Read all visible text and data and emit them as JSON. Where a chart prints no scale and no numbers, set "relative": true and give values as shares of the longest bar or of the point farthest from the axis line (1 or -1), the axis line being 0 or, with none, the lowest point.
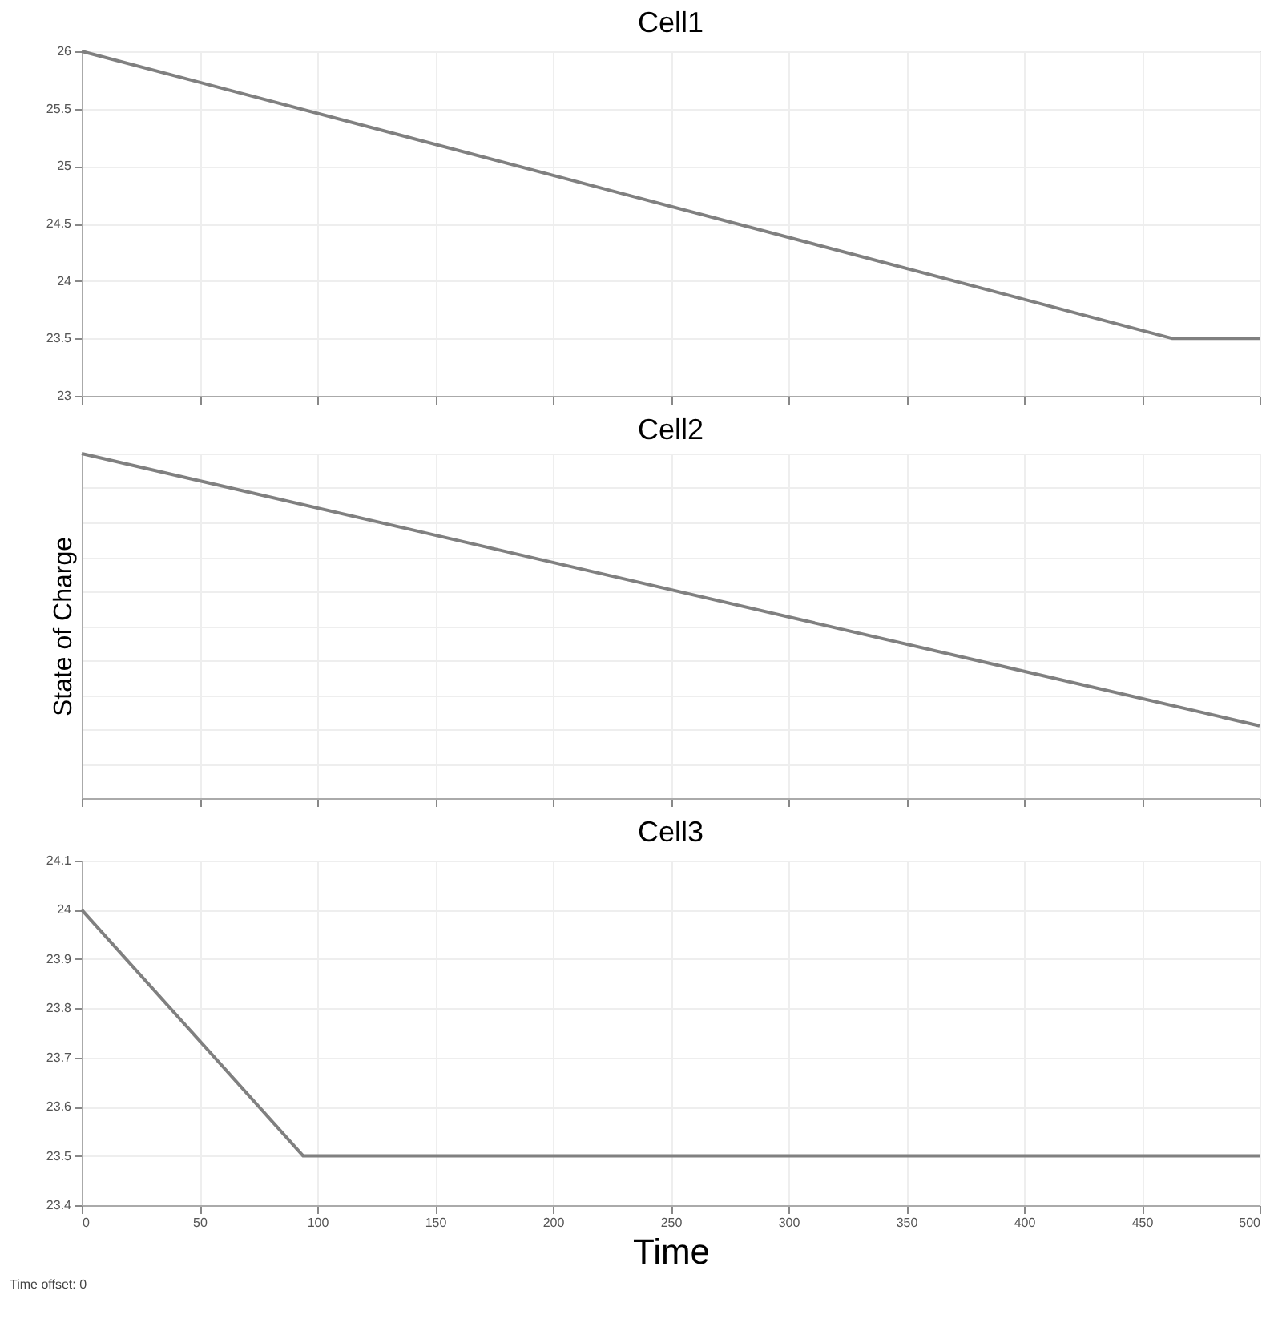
{
  "chart_data": [
    {
      "type": "line",
      "title": "Cell1",
      "x": [
        0,
        463,
        500
      ],
      "values": [
        26,
        23.5,
        23.5
      ],
      "color": "#808080",
      "xlim": [
        0,
        500
      ],
      "xticks": [
        0,
        50,
        100,
        150,
        200,
        250,
        300,
        350,
        400,
        450,
        500
      ],
      "ylim": [
        23,
        26
      ],
      "yticks": [
        23,
        23.5,
        24,
        24.5,
        25,
        25.5,
        26
      ],
      "grid": true,
      "tick_labels": "y"
    },
    {
      "type": "line",
      "title": "Cell2",
      "ylabel": "State of Charge",
      "x": [
        0,
        500
      ],
      "values": [
        1,
        0.21
      ],
      "color": "#808080",
      "relative": true,
      "xlim": [
        0,
        500
      ],
      "xticks": [
        0,
        50,
        100,
        150,
        200,
        250,
        300,
        350,
        400,
        450,
        500
      ],
      "grid": true,
      "tick_labels": false
    },
    {
      "type": "line",
      "title": "Cell3",
      "xlabel": "Time",
      "x": [
        0,
        94,
        500
      ],
      "values": [
        24,
        23.5,
        23.5
      ],
      "color": "#808080",
      "xlim": [
        0,
        500
      ],
      "xticks": [
        0,
        50,
        100,
        150,
        200,
        250,
        300,
        350,
        400,
        450,
        500
      ],
      "ylim": [
        23.4,
        24.1
      ],
      "yticks": [
        23.4,
        23.5,
        23.6,
        23.7,
        23.8,
        23.9,
        24,
        24.1
      ],
      "grid": true,
      "annotations": [
        "Time offset: 0"
      ]
    }
  ]
}
